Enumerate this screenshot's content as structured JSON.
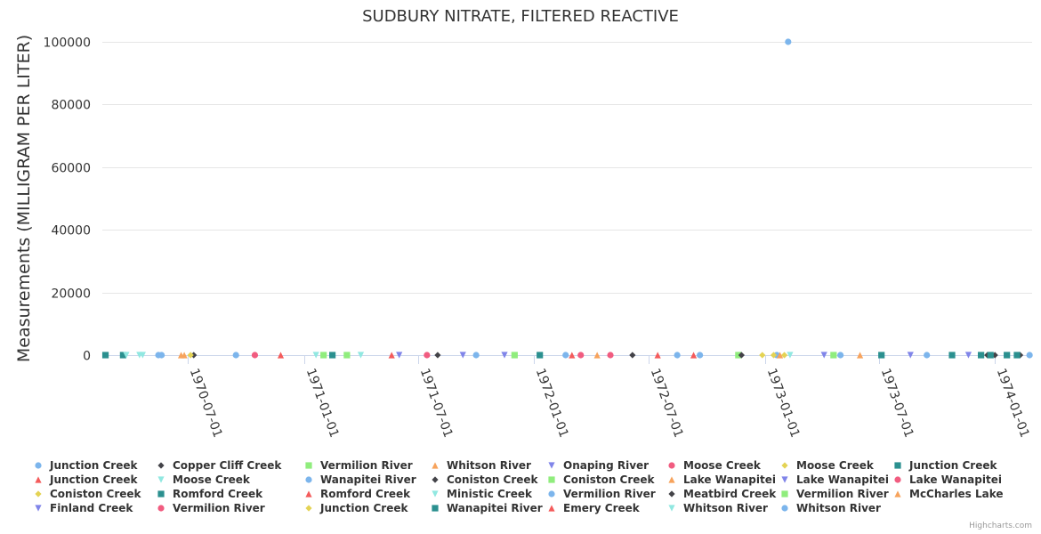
{
  "chart_data": {
    "type": "scatter",
    "title": "SUDBURY NITRATE, FILTERED REACTIVE",
    "ylabel": "Measurements (MILLIGRAM PER LITER)",
    "xlabel": "",
    "ylim": [
      0,
      100000
    ],
    "y_ticks": [
      0,
      20000,
      40000,
      60000,
      80000,
      100000
    ],
    "y_tick_labels": [
      "0",
      "20000",
      "40000",
      "60000",
      "80000",
      "100000"
    ],
    "x_ticks": [
      "1970-07-01",
      "1971-01-01",
      "1971-07-01",
      "1972-01-01",
      "1972-07-01",
      "1973-01-01",
      "1973-07-01",
      "1974-01-01"
    ],
    "x_range": [
      "1970-02-15",
      "1974-03-01"
    ],
    "grid": true,
    "legend_position": "bottom",
    "series": [
      {
        "name": "Junction Creek",
        "symbol": "circle",
        "color": "#7cb5ec",
        "values": [
          {
            "x": "1970-05-15",
            "y": 0
          },
          {
            "x": "1971-10-01",
            "y": 0
          },
          {
            "x": "1973-01-20",
            "y": 0
          }
        ]
      },
      {
        "name": "Copper Cliff Creek",
        "symbol": "diamond",
        "color": "#434348",
        "values": [
          {
            "x": "1970-07-10",
            "y": 0
          },
          {
            "x": "1972-06-05",
            "y": 0
          },
          {
            "x": "1973-12-20",
            "y": 0
          }
        ]
      },
      {
        "name": "Vermilion River",
        "symbol": "square",
        "color": "#90ed7d",
        "values": [
          {
            "x": "1971-03-10",
            "y": 0
          },
          {
            "x": "1972-11-20",
            "y": 0
          }
        ]
      },
      {
        "name": "Whitson River",
        "symbol": "triangle",
        "color": "#f7a35c",
        "values": [
          {
            "x": "1970-06-20",
            "y": 0
          },
          {
            "x": "1973-01-25",
            "y": 0
          }
        ]
      },
      {
        "name": "Onaping River",
        "symbol": "triangle-down",
        "color": "#8085e9",
        "values": [
          {
            "x": "1971-06-01",
            "y": 0
          },
          {
            "x": "1973-04-05",
            "y": 0
          }
        ]
      },
      {
        "name": "Moose Creek",
        "symbol": "circle",
        "color": "#f15c80",
        "values": [
          {
            "x": "1970-10-15",
            "y": 0
          },
          {
            "x": "1972-03-15",
            "y": 0
          }
        ]
      },
      {
        "name": "Moose Creek",
        "symbol": "diamond",
        "color": "#e4d354",
        "values": [
          {
            "x": "1970-07-05",
            "y": 0
          },
          {
            "x": "1973-02-01",
            "y": 0
          }
        ]
      },
      {
        "name": "Junction Creek",
        "symbol": "square",
        "color": "#2b908f",
        "values": [
          {
            "x": "1970-02-20",
            "y": 0
          },
          {
            "x": "1970-03-20",
            "y": 0
          },
          {
            "x": "1971-02-15",
            "y": 0
          },
          {
            "x": "1973-10-25",
            "y": 0
          }
        ]
      },
      {
        "name": "Junction Creek",
        "symbol": "triangle",
        "color": "#f45b5b",
        "values": [
          {
            "x": "1971-05-20",
            "y": 0
          },
          {
            "x": "1972-09-10",
            "y": 0
          }
        ]
      },
      {
        "name": "Moose Creek",
        "symbol": "triangle-down",
        "color": "#91e8e1",
        "values": [
          {
            "x": "1970-04-15",
            "y": 0
          },
          {
            "x": "1971-04-01",
            "y": 0
          }
        ]
      },
      {
        "name": "Wanapitei River",
        "symbol": "circle",
        "color": "#7cb5ec",
        "values": [
          {
            "x": "1970-09-15",
            "y": 0
          },
          {
            "x": "1972-02-20",
            "y": 0
          },
          {
            "x": "1973-05-01",
            "y": 0
          }
        ]
      },
      {
        "name": "Coniston Creek",
        "symbol": "diamond",
        "color": "#434348",
        "values": [
          {
            "x": "1971-08-01",
            "y": 0
          },
          {
            "x": "1974-01-01",
            "y": 0
          }
        ]
      },
      {
        "name": "Coniston Creek",
        "symbol": "square",
        "color": "#90ed7d",
        "values": [
          {
            "x": "1971-12-01",
            "y": 0
          },
          {
            "x": "1973-04-20",
            "y": 0
          }
        ]
      },
      {
        "name": "Lake Wanapitei",
        "symbol": "triangle",
        "color": "#f7a35c",
        "values": [
          {
            "x": "1972-04-10",
            "y": 0
          },
          {
            "x": "1973-06-01",
            "y": 0
          }
        ]
      },
      {
        "name": "Lake Wanapitei",
        "symbol": "triangle-down",
        "color": "#8085e9",
        "values": [
          {
            "x": "1971-11-15",
            "y": 0
          },
          {
            "x": "1973-08-20",
            "y": 0
          }
        ]
      },
      {
        "name": "Lake Wanapitei",
        "symbol": "circle",
        "color": "#f15c80",
        "values": [
          {
            "x": "1972-05-01",
            "y": 0
          }
        ]
      },
      {
        "name": "Coniston Creek",
        "symbol": "diamond",
        "color": "#e4d354",
        "values": [
          {
            "x": "1972-12-28",
            "y": 0
          }
        ]
      },
      {
        "name": "Romford Creek",
        "symbol": "square",
        "color": "#2b908f",
        "values": [
          {
            "x": "1972-01-10",
            "y": 0
          },
          {
            "x": "1973-07-05",
            "y": 0
          },
          {
            "x": "1973-12-10",
            "y": 0
          }
        ]
      },
      {
        "name": "Romford Creek",
        "symbol": "triangle",
        "color": "#f45b5b",
        "values": [
          {
            "x": "1970-11-25",
            "y": 0
          },
          {
            "x": "1972-07-15",
            "y": 0
          }
        ]
      },
      {
        "name": "Ministic Creek",
        "symbol": "triangle-down",
        "color": "#91e8e1",
        "values": [
          {
            "x": "1970-04-20",
            "y": 0
          },
          {
            "x": "1971-01-20",
            "y": 0
          }
        ]
      },
      {
        "name": "Vermilion River",
        "symbol": "circle",
        "color": "#7cb5ec",
        "values": [
          {
            "x": "1972-08-15",
            "y": 0
          },
          {
            "x": "1973-09-15",
            "y": 0
          }
        ]
      },
      {
        "name": "Meatbird Creek",
        "symbol": "diamond",
        "color": "#434348",
        "values": [
          {
            "x": "1972-11-25",
            "y": 0
          },
          {
            "x": "1974-02-10",
            "y": 0
          }
        ]
      },
      {
        "name": "Vermilion River",
        "symbol": "square",
        "color": "#90ed7d",
        "values": [
          {
            "x": "1971-02-01",
            "y": 0
          }
        ]
      },
      {
        "name": "McCharles Lake",
        "symbol": "triangle",
        "color": "#f7a35c",
        "values": [
          {
            "x": "1970-06-25",
            "y": 0
          }
        ]
      },
      {
        "name": "Finland Creek",
        "symbol": "triangle-down",
        "color": "#8085e9",
        "values": [
          {
            "x": "1971-09-10",
            "y": 0
          },
          {
            "x": "1973-11-20",
            "y": 0
          }
        ]
      },
      {
        "name": "Vermilion River",
        "symbol": "circle",
        "color": "#f15c80",
        "values": [
          {
            "x": "1971-07-15",
            "y": 0
          }
        ]
      },
      {
        "name": "Junction Creek",
        "symbol": "diamond",
        "color": "#e4d354",
        "values": [
          {
            "x": "1973-01-15",
            "y": 0
          }
        ]
      },
      {
        "name": "Wanapitei River",
        "symbol": "square",
        "color": "#2b908f",
        "values": [
          {
            "x": "1974-01-20",
            "y": 0
          },
          {
            "x": "1974-02-05",
            "y": 0
          },
          {
            "x": "1973-12-25",
            "y": 0
          }
        ]
      },
      {
        "name": "Emery Creek",
        "symbol": "triangle",
        "color": "#f45b5b",
        "values": [
          {
            "x": "1972-03-01",
            "y": 0
          }
        ]
      },
      {
        "name": "Whitson River",
        "symbol": "triangle-down",
        "color": "#91e8e1",
        "values": [
          {
            "x": "1970-03-25",
            "y": 0
          },
          {
            "x": "1973-02-10",
            "y": 0
          }
        ]
      },
      {
        "name": "Whitson River",
        "symbol": "circle",
        "color": "#7cb5ec",
        "values": [
          {
            "x": "1973-02-07",
            "y": 100000
          },
          {
            "x": "1970-05-20",
            "y": 0
          },
          {
            "x": "1972-09-20",
            "y": 0
          },
          {
            "x": "1974-02-25",
            "y": 0
          }
        ]
      }
    ]
  },
  "credits": "Highcharts.com"
}
